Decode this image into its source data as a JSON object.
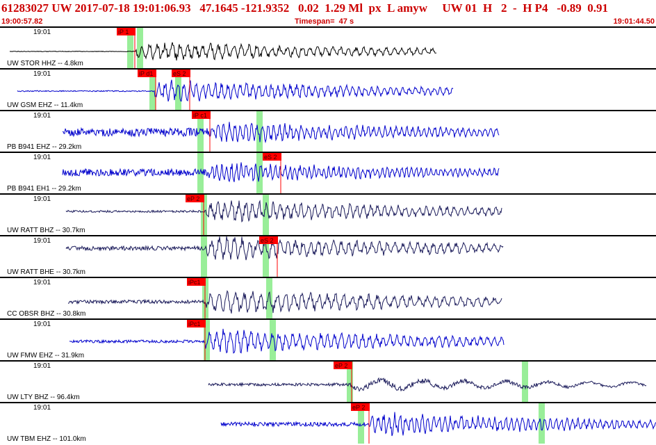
{
  "header": {
    "title": "61283027 UW 2017-07-18 19:01:06.93   47.1645 -121.9352   0.02  1.29 Ml  px  L amyw     UW 01  H   2  -  H P4   -0.89  0.91",
    "start_time": "19:00:57.82",
    "timespan": "Timespan=  47 s",
    "end_time": "19:01:44.50"
  },
  "colors": {
    "header_text": "#cc0000",
    "pick_box": "#ff0000",
    "pick_bar": "#99ee99",
    "trace_black": "#000000",
    "trace_blue": "#0000cc",
    "trace_navy": "#1a1a5a"
  },
  "channels": [
    {
      "time": "19:01",
      "label": "UW STOR HHZ -- 4.8km",
      "color": "#000000",
      "picks": [
        {
          "text": "iP 1",
          "pos": 0.178
        }
      ],
      "extra_picks": [],
      "bars": [
        0.198,
        0.213
      ]
    },
    {
      "time": "19:01",
      "label": "UW GSM EHZ -- 11.4km",
      "color": "#0000cc",
      "picks": [
        {
          "text": "iP d1",
          "pos": 0.21
        },
        {
          "text": "eS 2",
          "pos": 0.262
        }
      ],
      "extra_picks": [],
      "bars": [
        0.232,
        0.271
      ]
    },
    {
      "time": "19:01",
      "label": "PB B941 EHZ -- 29.2km",
      "color": "#0000cc",
      "picks": [
        {
          "text": "iP c1",
          "pos": 0.292
        }
      ],
      "extra_picks": [],
      "bars": [
        0.305,
        0.395
      ]
    },
    {
      "time": "19:01",
      "label": "PB B941 EH1 -- 29.2km",
      "color": "#0000cc",
      "picks": [
        {
          "text": "eS 2",
          "pos": 0.4
        }
      ],
      "extra_picks": [],
      "bars": [
        0.305,
        0.395
      ]
    },
    {
      "time": "19:01",
      "label": "UW RATT BHZ -- 30.7km",
      "color": "#1a1a5a",
      "picks": [
        {
          "text": "eP 2",
          "pos": 0.283
        }
      ],
      "extra_picks": [],
      "bars": [
        0.31,
        0.405
      ]
    },
    {
      "time": "19:01",
      "label": "UW RATT BHE -- 30.7km",
      "color": "#1a1a5a",
      "picks": [
        {
          "text": "eS 2",
          "pos": 0.395
        }
      ],
      "extra_picks": [],
      "bars": [
        0.31,
        0.405
      ]
    },
    {
      "time": "19:01",
      "label": "CC OBSR BHZ -- 30.8km",
      "color": "#1a1a5a",
      "picks": [
        {
          "text": "iPc1",
          "pos": 0.285
        }
      ],
      "extra_picks": [],
      "bars": [
        0.312,
        0.41
      ]
    },
    {
      "time": "19:01",
      "label": "UW FMW EHZ -- 31.9km",
      "color": "#0000cc",
      "picks": [
        {
          "text": "iPc1",
          "pos": 0.285
        }
      ],
      "extra_picks": [],
      "bars": [
        0.315,
        0.415
      ]
    },
    {
      "time": "19:01",
      "label": "UW LTY BHZ -- 96.4km",
      "color": "#1a1a5a",
      "picks": [
        {
          "text": "eP 2",
          "pos": 0.508
        }
      ],
      "extra_picks": [],
      "bars": [
        0.533,
        0.8
      ]
    },
    {
      "time": "19:01",
      "label": "UW TBM EHZ -- 101.0km",
      "color": "#0000cc",
      "picks": [
        {
          "text": "eP 2",
          "pos": 0.535
        }
      ],
      "extra_picks": [],
      "bars": [
        0.55,
        0.825
      ]
    }
  ]
}
